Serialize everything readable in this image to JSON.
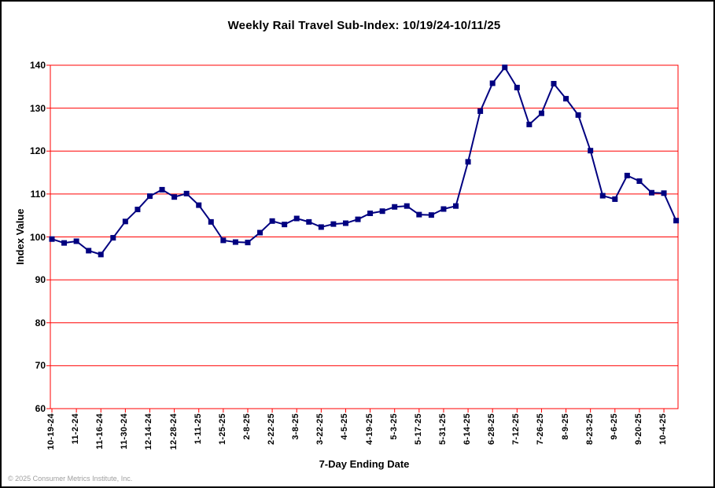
{
  "chart": {
    "title": "Weekly Rail Travel Sub-Index: 10/19/24-10/11/25",
    "xlabel": "7-Day Ending Date",
    "ylabel": "Index Value"
  },
  "footer": {
    "copyright": "© 2025 Consumer Metrics Institute, Inc."
  },
  "colors": {
    "line": "#000080",
    "marker": "#000080",
    "grid": "#FF0000",
    "axis": "#FF0000",
    "text": "#000000",
    "footer_text": "#9e9e9e"
  },
  "chart_data": {
    "type": "line",
    "title": "Weekly Rail Travel Sub-Index: 10/19/24-10/11/25",
    "xlabel": "7-Day Ending Date",
    "ylabel": "Index Value",
    "ylim": [
      60,
      140
    ],
    "ytick_step": 10,
    "yticks": [
      140,
      130,
      120,
      110,
      100,
      90,
      80,
      70,
      60
    ],
    "xtick_labels": [
      "10-19-24",
      "11-2-24",
      "11-16-24",
      "11-30-24",
      "12-14-24",
      "12-28-24",
      "1-11-25",
      "1-25-25",
      "2-8-25",
      "2-22-25",
      "3-8-25",
      "3-22-25",
      "4-5-25",
      "4-19-25",
      "5-3-25",
      "5-17-25",
      "5-31-25",
      "6-14-25",
      "6-28-25",
      "7-12-25",
      "7-26-25",
      "8-9-25",
      "8-23-25",
      "9-6-25",
      "9-20-25",
      "10-4-25"
    ],
    "points_per_tick": 2,
    "grid": "horizontal-only",
    "legend_position": "none",
    "marker": "square",
    "values": [
      99.5,
      98.6,
      99.0,
      96.8,
      95.9,
      99.8,
      103.6,
      106.4,
      109.5,
      111.0,
      109.3,
      110.1,
      107.4,
      103.5,
      99.2,
      98.8,
      98.7,
      101.0,
      103.7,
      102.9,
      104.3,
      103.5,
      102.3,
      103.0,
      103.2,
      104.1,
      105.5,
      106.0,
      107.0,
      107.2,
      105.2,
      105.1,
      106.5,
      107.2,
      117.5,
      129.3,
      135.8,
      139.5,
      134.8,
      126.2,
      128.8,
      135.7,
      132.2,
      128.4,
      120.1,
      109.6,
      108.8,
      114.3,
      113.0,
      110.3,
      110.2,
      103.8
    ]
  }
}
